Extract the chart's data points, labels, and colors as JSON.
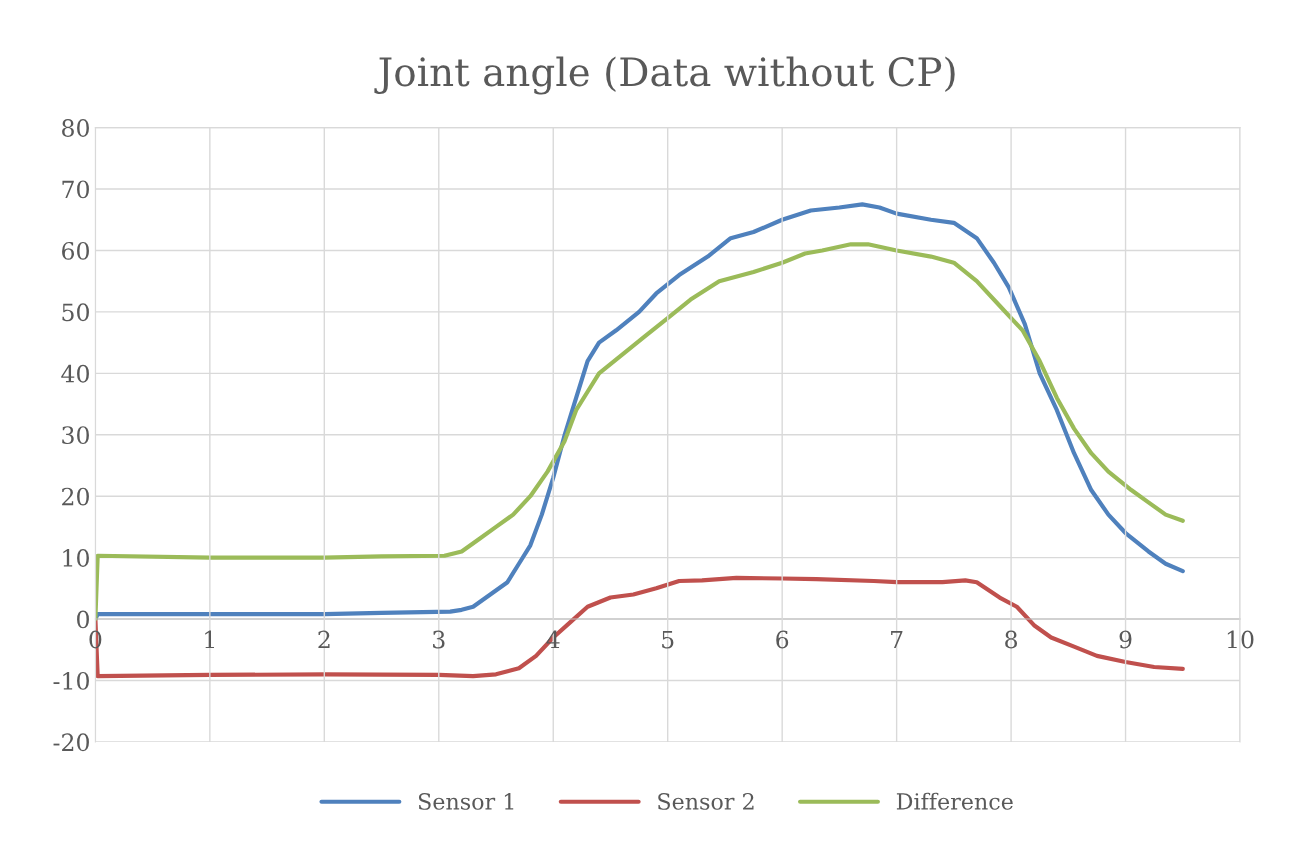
{
  "chart_data": {
    "type": "line",
    "title": "Joint angle (Data without CP)",
    "xlim": [
      0,
      10
    ],
    "xticks": [
      0,
      1,
      2,
      3,
      4,
      5,
      6,
      7,
      8,
      9,
      10
    ],
    "ylim": [
      -20,
      80
    ],
    "yticks": [
      -20,
      -10,
      0,
      10,
      20,
      30,
      40,
      50,
      60,
      70,
      80
    ],
    "grid": true,
    "legend": "bottom",
    "marker": "none",
    "line_style": "solid",
    "series": [
      {
        "name": "Sensor 1",
        "color": "#4f81bd",
        "x": [
          0,
          0.02,
          1,
          2,
          2.5,
          3.1,
          3.2,
          3.3,
          3.45,
          3.6,
          3.7,
          3.8,
          3.9,
          4.0,
          4.1,
          4.2,
          4.3,
          4.4,
          4.55,
          4.75,
          4.9,
          5.1,
          5.35,
          5.55,
          5.75,
          6.0,
          6.25,
          6.5,
          6.7,
          6.85,
          7.0,
          7.3,
          7.5,
          7.7,
          7.85,
          7.98,
          8.12,
          8.25,
          8.4,
          8.55,
          8.7,
          8.85,
          9.0,
          9.2,
          9.35,
          9.5
        ],
        "values": [
          0,
          0.8,
          0.8,
          0.8,
          1.0,
          1.2,
          1.5,
          2,
          4,
          6,
          9,
          12,
          17,
          23,
          30,
          36,
          42,
          45,
          47,
          50,
          53,
          56,
          59,
          62,
          63,
          65,
          66.5,
          67,
          67.5,
          67,
          66,
          65,
          64.5,
          62,
          58,
          54,
          48,
          40,
          34,
          27,
          21,
          17,
          14,
          11,
          9,
          7.8
        ]
      },
      {
        "name": "Sensor 2",
        "color": "#c0504d",
        "x": [
          0,
          0.02,
          1,
          2,
          3,
          3.3,
          3.5,
          3.7,
          3.85,
          4.0,
          4.15,
          4.3,
          4.5,
          4.7,
          4.9,
          5.1,
          5.3,
          5.6,
          6.0,
          6.3,
          6.8,
          7.0,
          7.4,
          7.6,
          7.7,
          7.9,
          8.05,
          8.2,
          8.35,
          8.55,
          8.75,
          9.0,
          9.25,
          9.5
        ],
        "values": [
          0,
          -9.3,
          -9.1,
          -9.0,
          -9.1,
          -9.3,
          -9.0,
          -8,
          -6,
          -3,
          -0.5,
          2,
          3.5,
          4,
          5,
          6.2,
          6.3,
          6.7,
          6.6,
          6.5,
          6.2,
          6.0,
          6.0,
          6.3,
          6,
          3.5,
          2,
          -1,
          -3,
          -4.5,
          -6,
          -7,
          -7.8,
          -8.1
        ]
      },
      {
        "name": "Difference",
        "color": "#9bbb59",
        "x": [
          0,
          0.02,
          1,
          2,
          2.5,
          3.05,
          3.2,
          3.35,
          3.5,
          3.65,
          3.8,
          3.95,
          4.1,
          4.2,
          4.3,
          4.4,
          4.6,
          4.8,
          5.0,
          5.2,
          5.45,
          5.75,
          6.0,
          6.2,
          6.35,
          6.6,
          6.75,
          7.0,
          7.3,
          7.5,
          7.7,
          7.9,
          8.1,
          8.25,
          8.4,
          8.55,
          8.7,
          8.85,
          9.05,
          9.2,
          9.35,
          9.5
        ],
        "values": [
          0,
          10.3,
          10.0,
          10.0,
          10.2,
          10.3,
          11,
          13,
          15,
          17,
          20,
          24,
          29,
          34,
          37,
          40,
          43,
          46,
          49,
          52,
          55,
          56.5,
          58,
          59.5,
          60,
          61,
          61,
          60,
          59,
          58,
          55,
          51,
          47,
          42,
          36,
          31,
          27,
          24,
          21,
          19,
          17,
          16
        ]
      }
    ]
  }
}
